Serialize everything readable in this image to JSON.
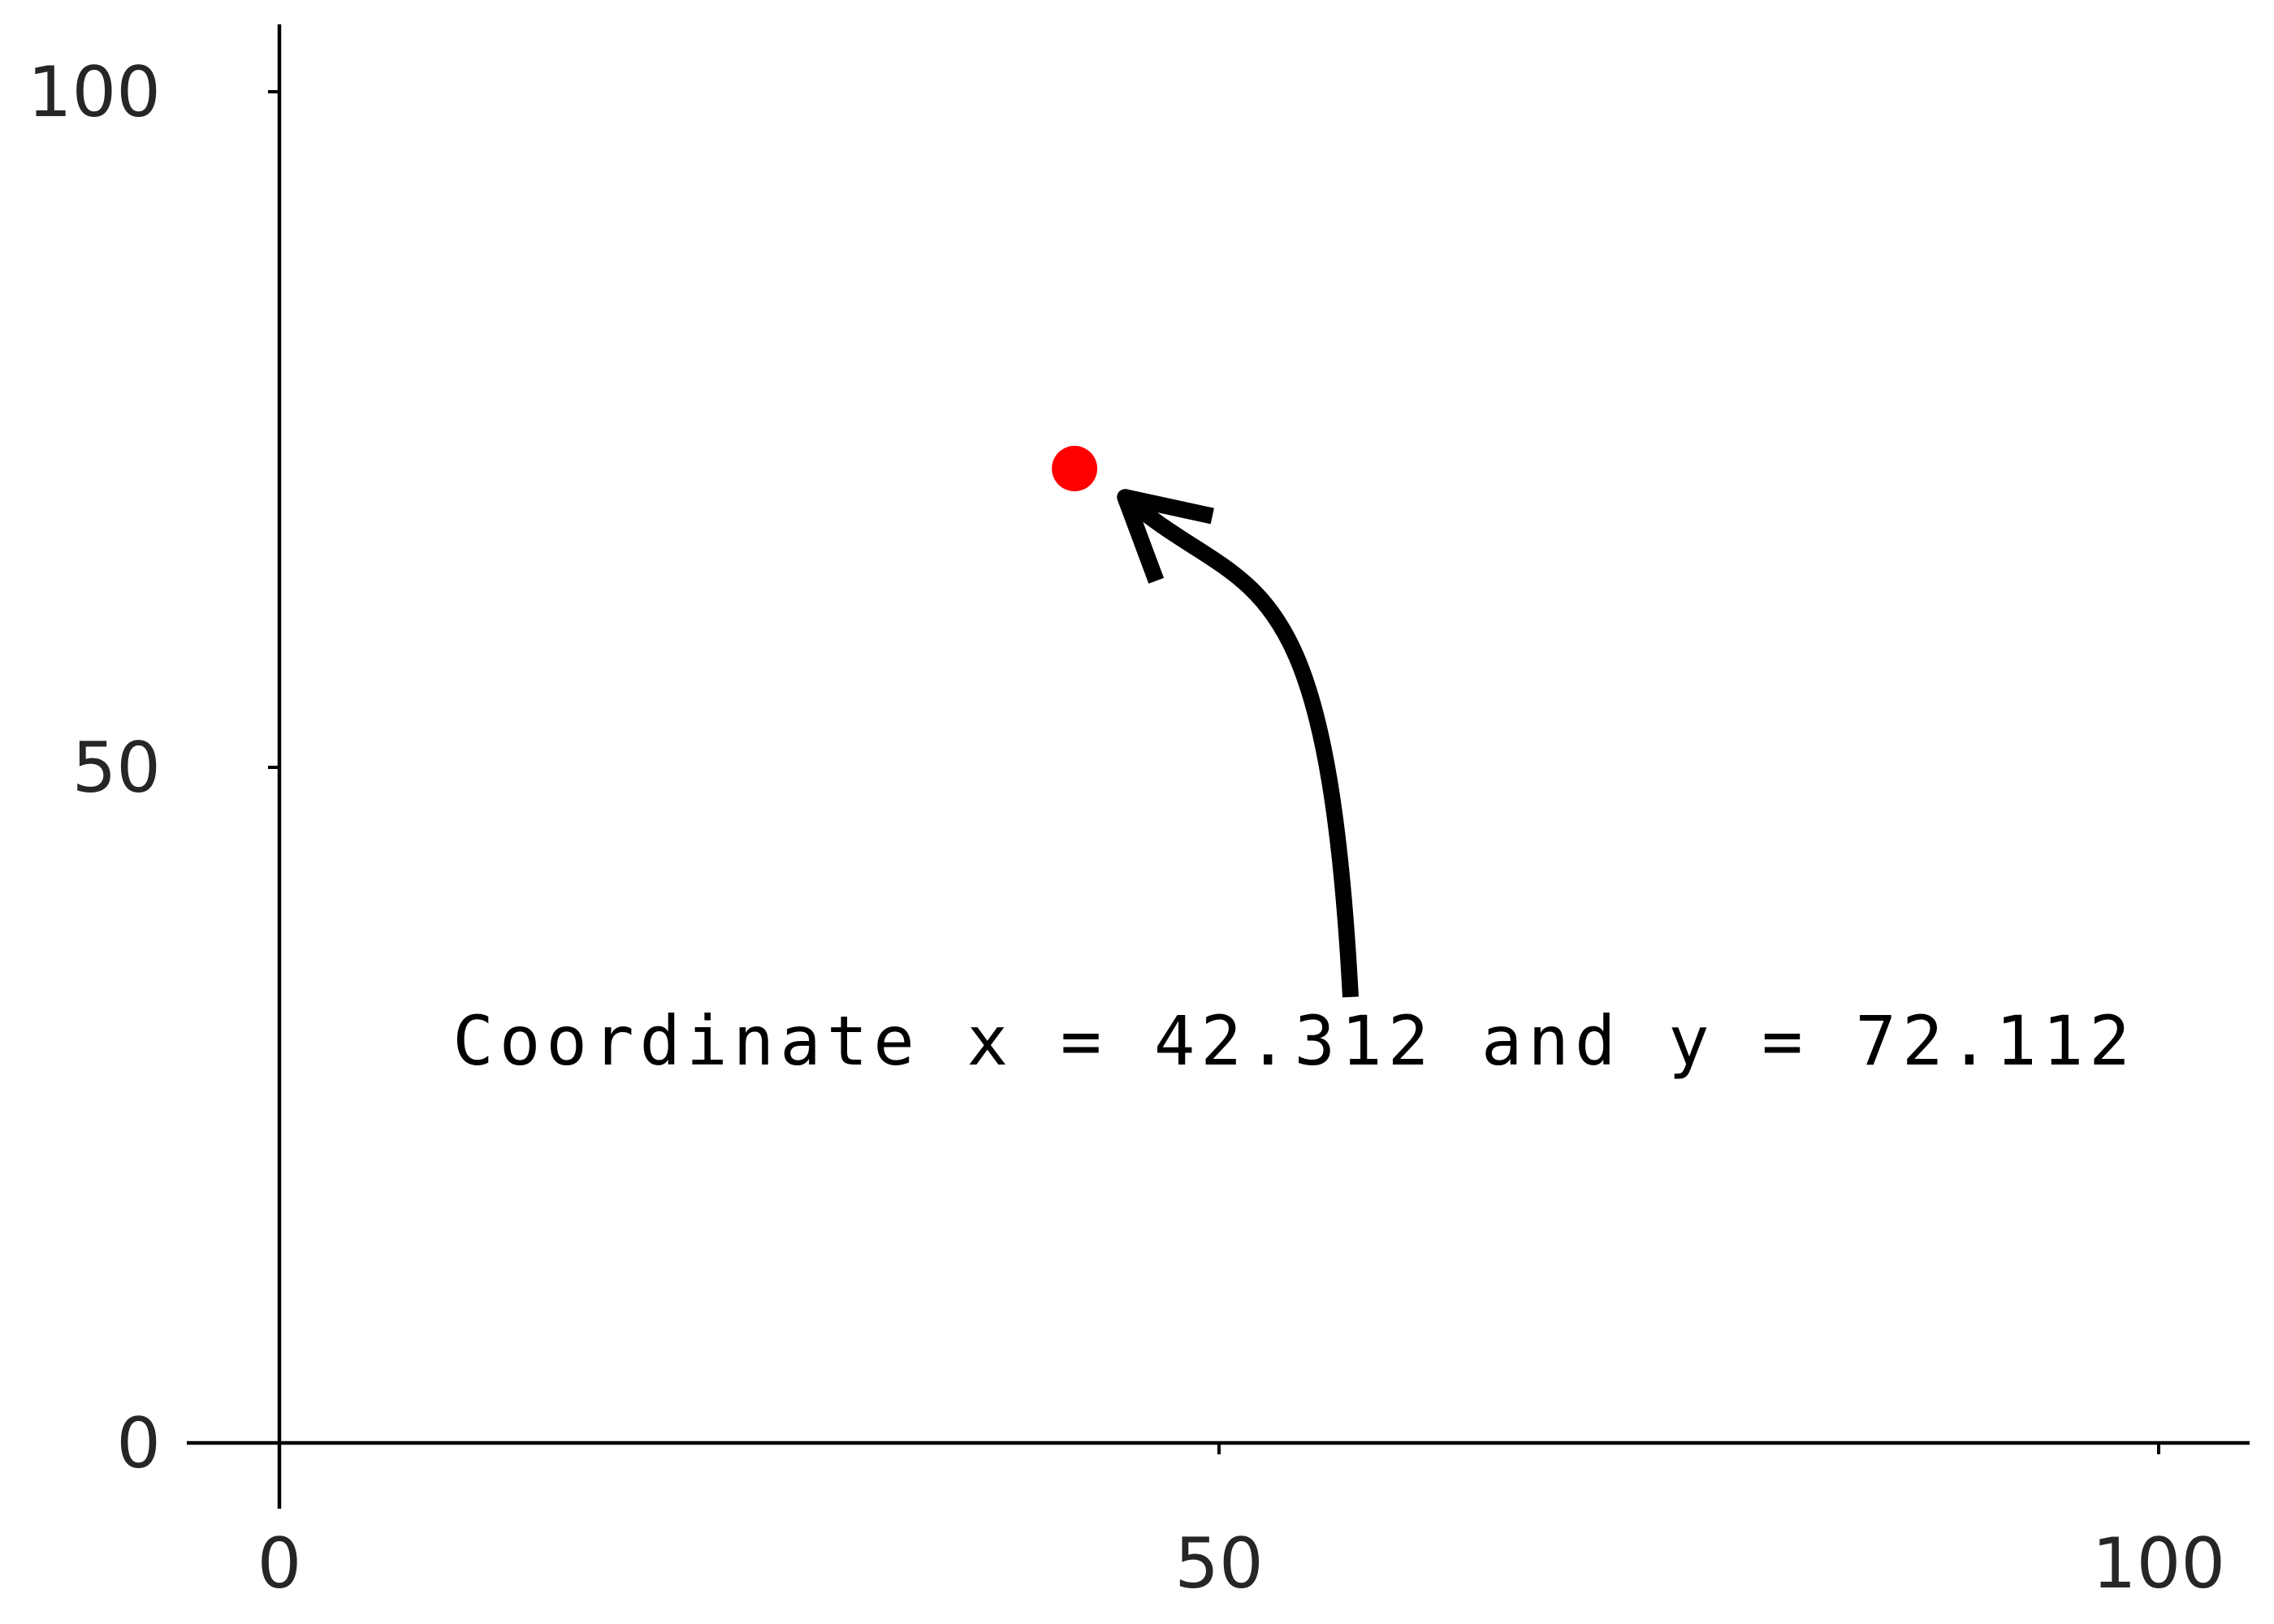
{
  "chart_data": {
    "type": "scatter",
    "title": "",
    "xlabel": "",
    "ylabel": "",
    "xlim": [
      0,
      100
    ],
    "ylim": [
      0,
      100
    ],
    "x_ticks": [
      0,
      50,
      100
    ],
    "y_ticks": [
      0,
      50,
      100
    ],
    "x_tick_labels": [
      "0",
      "50",
      "100"
    ],
    "y_tick_labels": [
      "0",
      "50",
      "100"
    ],
    "grid": false,
    "legend": "none",
    "series": [
      {
        "points": [
          {
            "x": 42.312,
            "y": 72.112
          }
        ],
        "color": "#ff0000"
      }
    ],
    "annotation": {
      "text": "Coordinate x = 42.312 and y = 72.112",
      "text_x": 54,
      "text_y": 28,
      "arrow_from": {
        "x": 57,
        "y": 33
      },
      "arrow_to": {
        "x": 45,
        "y": 70
      },
      "arrow_color": "#000000"
    },
    "colors": {
      "axis": "#000000",
      "tick_text": "#262626",
      "point": "#ff0000"
    }
  }
}
